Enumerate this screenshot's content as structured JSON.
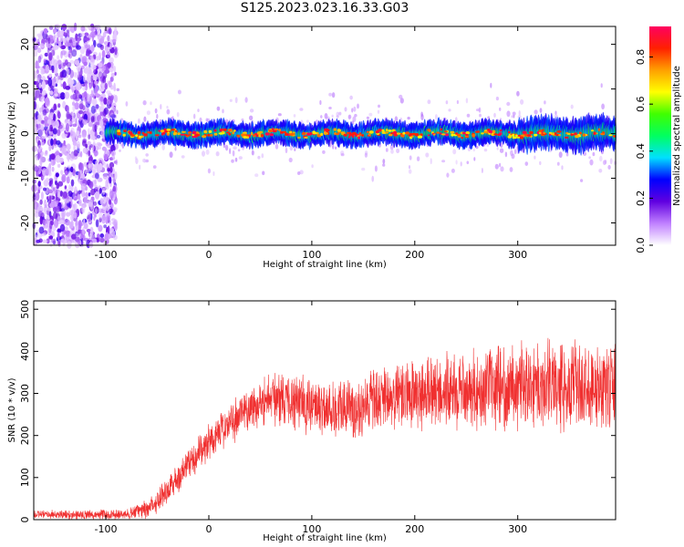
{
  "title": "S125.2023.023.16.33.G03",
  "chart_data": [
    {
      "type": "heatmap",
      "xlabel": "Height of straight line (km)",
      "ylabel": "Frequency (Hz)",
      "xlim": [
        -170,
        395
      ],
      "ylim": [
        -25,
        24
      ],
      "xticks": [
        -100,
        0,
        100,
        200,
        300
      ],
      "yticks": [
        -20,
        -10,
        0,
        10,
        20
      ],
      "grid": false,
      "description_of_signal": {
        "noise_region_x": [
          -170,
          -100
        ],
        "signal_start_x": -100,
        "signal_center_hz": 0,
        "signal_halfwidth_hz": 2
      },
      "colorbar": {
        "label": "Normalized spectral amplitude",
        "ticks": [
          0.0,
          0.2,
          0.4,
          0.6,
          0.8
        ],
        "range": [
          0,
          0.93
        ],
        "colormap": [
          "#ffffff",
          "#c080ff",
          "#6000e0",
          "#0000ff",
          "#00e0ff",
          "#00ff60",
          "#40ff00",
          "#ffff00",
          "#ffa000",
          "#ff2000",
          "#ff0060"
        ]
      }
    },
    {
      "type": "line",
      "xlabel": "Height of straight line (km)",
      "ylabel": "SNR (10 * v/v)",
      "xlim": [
        -170,
        395
      ],
      "ylim": [
        0,
        520
      ],
      "xticks": [
        -100,
        0,
        100,
        200,
        300
      ],
      "yticks": [
        0,
        100,
        200,
        300,
        400,
        500
      ],
      "grid": false,
      "color": "#f03030",
      "trend": {
        "x": [
          -170,
          -80,
          -60,
          -40,
          -20,
          0,
          20,
          40,
          60,
          80,
          100,
          120,
          140,
          160,
          180,
          200,
          220,
          240,
          260,
          280,
          300,
          320,
          340,
          360,
          380,
          395
        ],
        "y": [
          12,
          12,
          25,
          70,
          130,
          185,
          230,
          265,
          290,
          285,
          270,
          265,
          265,
          280,
          290,
          295,
          300,
          305,
          310,
          315,
          320,
          325,
          320,
          318,
          315,
          315
        ]
      },
      "spread": {
        "x": [
          -170,
          -80,
          -40,
          0,
          40,
          80,
          140,
          200,
          260,
          320,
          395
        ],
        "y": [
          8,
          10,
          30,
          35,
          45,
          55,
          60,
          70,
          75,
          85,
          85
        ]
      }
    }
  ]
}
